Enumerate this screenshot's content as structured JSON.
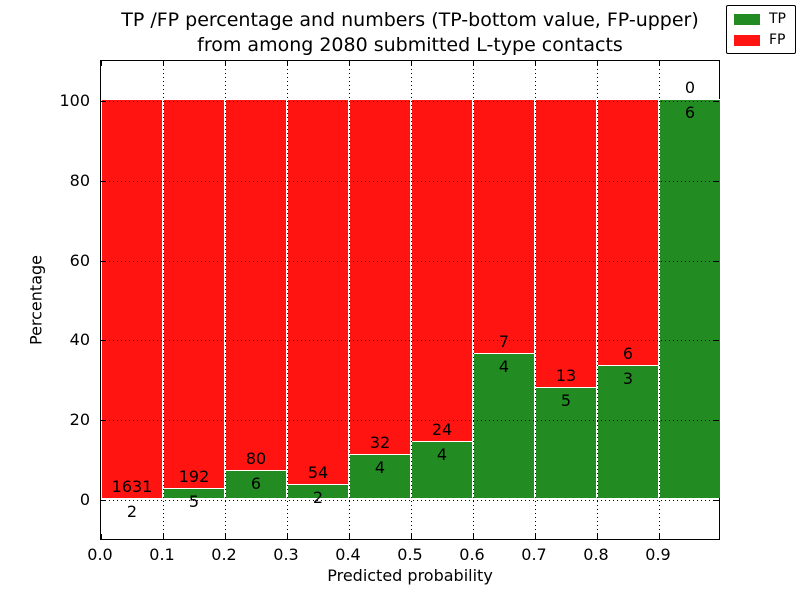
{
  "title": {
    "line1": "TP /FP percentage and numbers (TP-bottom value, FP-upper)",
    "line2": "from among 2080 submitted L-type contacts"
  },
  "axes": {
    "xlabel": "Predicted probability",
    "ylabel": "Percentage",
    "x_tick_labels": [
      "0.0",
      "0.1",
      "0.2",
      "0.3",
      "0.4",
      "0.5",
      "0.6",
      "0.7",
      "0.8",
      "0.9"
    ],
    "y_tick_labels": [
      "0",
      "20",
      "40",
      "60",
      "80",
      "100"
    ],
    "y_tick_values": [
      0,
      20,
      40,
      60,
      80,
      100
    ]
  },
  "legend": {
    "items": [
      {
        "label": "TP",
        "color": "#228b22"
      },
      {
        "label": "FP",
        "color": "#ff1412"
      }
    ],
    "position": "upper right"
  },
  "colors": {
    "tp": "#228b22",
    "fp": "#ff1412",
    "background": "#ffffff",
    "grid": "#000000",
    "frame": "#000000"
  },
  "chart_data": {
    "type": "bar",
    "stacked": true,
    "normalized": "each bin scaled to 100%",
    "title": "TP /FP percentage and numbers (TP-bottom value, FP-upper) from among 2080 submitted L-type contacts",
    "xlabel": "Predicted probability",
    "ylabel": "Percentage",
    "xlim": [
      0.0,
      1.0
    ],
    "ylim": [
      -11,
      110
    ],
    "bin_width": 0.1,
    "grid": true,
    "legend_position": "upper right",
    "categories": [
      "0.0-0.1",
      "0.1-0.2",
      "0.2-0.3",
      "0.3-0.4",
      "0.4-0.5",
      "0.5-0.6",
      "0.6-0.7",
      "0.7-0.8",
      "0.8-0.9",
      "0.9-1.0"
    ],
    "series": [
      {
        "name": "TP",
        "counts": [
          2,
          5,
          6,
          2,
          4,
          4,
          4,
          5,
          3,
          6
        ]
      },
      {
        "name": "FP",
        "counts": [
          1631,
          192,
          80,
          54,
          32,
          24,
          7,
          13,
          6,
          0
        ]
      }
    ],
    "tp_percentages": [
      0.12,
      2.54,
      6.98,
      3.57,
      11.11,
      14.29,
      36.36,
      27.78,
      33.33,
      100.0
    ],
    "total_contacts": 2080
  }
}
